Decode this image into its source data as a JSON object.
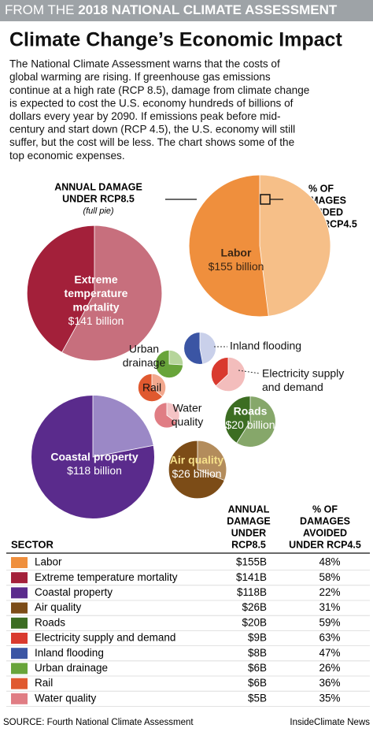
{
  "header": {
    "prefix": "FROM THE",
    "emph": "2018 NATIONAL CLIMATE ASSESSMENT"
  },
  "chart_data": {
    "type": "pie-bubble",
    "title": "Climate Change’s Economic Impact",
    "intro": [
      "The National Climate Assessment warns that the costs of",
      "global warming are rising. If greenhouse gas emissions",
      "continue at a high rate (RCP 8.5), damage from climate change",
      "is expected to cost the U.S. economy hundreds of billions of",
      "dollars every year by 2090. If emissions peak before mid-",
      "century and start down (RCP 4.5), the U.S. economy will still",
      "suffer, but the cost will be less. The chart shows some of the",
      "top economic expenses."
    ],
    "annotations": {
      "damage": [
        "ANNUAL DAMAGE",
        "UNDER RCP8.5"
      ],
      "full_pie": "(full pie)",
      "avoided": [
        "% OF",
        "DAMAGES",
        "AVOIDED",
        "UNDER RCP4.5"
      ]
    },
    "categories": [
      "Labor",
      "Extreme temperature mortality",
      "Coastal property",
      "Air quality",
      "Roads",
      "Electricity supply and demand",
      "Inland flooding",
      "Urban drainage",
      "Rail",
      "Water quality"
    ],
    "bubble_labels": [
      [
        "Labor"
      ],
      [
        "Extreme",
        "temperature",
        "mortality"
      ],
      [
        "Coastal property"
      ],
      [
        "Air quality"
      ],
      [
        "Roads"
      ],
      [
        "Electricity supply",
        "and demand"
      ],
      [
        "Inland flooding"
      ],
      [
        "Urban",
        "drainage"
      ],
      [
        "Rail"
      ],
      [
        "Water",
        "quality"
      ]
    ],
    "values": [
      155,
      141,
      118,
      26,
      20,
      9,
      8,
      6,
      6,
      5
    ],
    "value_labels": [
      "$155 billion",
      "$141 billion",
      "$118 billion",
      "$26 billion",
      "$20 billion",
      null,
      null,
      null,
      null,
      null
    ],
    "damage_labels": [
      "$155B",
      "$141B",
      "$118B",
      "$26B",
      "$20B",
      "$9B",
      "$8B",
      "$6B",
      "$6B",
      "$5B"
    ],
    "avoided": [
      48,
      58,
      22,
      31,
      59,
      63,
      47,
      26,
      36,
      35
    ],
    "avoided_labels": [
      "48%",
      "58%",
      "22%",
      "31%",
      "59%",
      "63%",
      "47%",
      "26%",
      "36%",
      "35%"
    ],
    "colors": [
      "#ef8f3d",
      "#a3203a",
      "#5a2b8c",
      "#7c4c17",
      "#3c6d22",
      "#d93a2f",
      "#3b55a4",
      "#68a43a",
      "#e0592f",
      "#e07d84"
    ],
    "light_colors": [
      "#f6bf88",
      "#c76f7d",
      "#9b88c6",
      "#b38c5c",
      "#86a76a",
      "#f3bdbc",
      "#c9d0ea",
      "#b6d59b",
      "#f2a88e",
      "#f4c3c5"
    ],
    "table_headers": {
      "sector": "SECTOR",
      "damage": [
        "ANNUAL",
        "DAMAGE",
        "UNDER",
        "RCP8.5"
      ],
      "avoided": [
        "% OF",
        "DAMAGES",
        "AVOIDED",
        "UNDER RCP4.5"
      ]
    },
    "source": "SOURCE: Fourth National Climate Assessment",
    "credit": "InsideClimate News"
  }
}
